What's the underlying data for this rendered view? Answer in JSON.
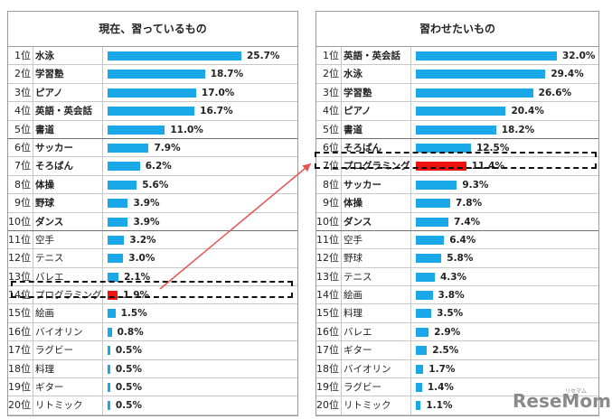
{
  "chart_data": [
    {
      "type": "bar",
      "title": "現在、習っているもの",
      "max": 25.7,
      "highlight": "プログラミング",
      "rows": [
        {
          "rank": "1位",
          "name": "水泳",
          "value": 25.7,
          "label": "25.7%",
          "bold": true
        },
        {
          "rank": "2位",
          "name": "学習塾",
          "value": 18.7,
          "label": "18.7%",
          "bold": true
        },
        {
          "rank": "3位",
          "name": "ピアノ",
          "value": 17.0,
          "label": "17.0%",
          "bold": true
        },
        {
          "rank": "4位",
          "name": "英語・英会話",
          "value": 16.7,
          "label": "16.7%",
          "bold": true
        },
        {
          "rank": "5位",
          "name": "書道",
          "value": 11.0,
          "label": "11.0%",
          "bold": true
        },
        {
          "rank": "6位",
          "name": "サッカー",
          "value": 7.9,
          "label": "7.9%",
          "bold": true
        },
        {
          "rank": "7位",
          "name": "そろばん",
          "value": 6.2,
          "label": "6.2%",
          "bold": true
        },
        {
          "rank": "8位",
          "name": "体操",
          "value": 5.6,
          "label": "5.6%",
          "bold": true
        },
        {
          "rank": "9位",
          "name": "野球",
          "value": 3.9,
          "label": "3.9%",
          "bold": true
        },
        {
          "rank": "10位",
          "name": "ダンス",
          "value": 3.9,
          "label": "3.9%",
          "bold": true
        },
        {
          "rank": "11位",
          "name": "空手",
          "value": 3.2,
          "label": "3.2%",
          "bold": false
        },
        {
          "rank": "12位",
          "name": "テニス",
          "value": 3.0,
          "label": "3.0%",
          "bold": false
        },
        {
          "rank": "13位",
          "name": "バレエ",
          "value": 2.1,
          "label": "2.1%",
          "bold": false
        },
        {
          "rank": "14位",
          "name": "プログラミング",
          "value": 1.9,
          "label": "1.9%",
          "bold": false
        },
        {
          "rank": "15位",
          "name": "絵画",
          "value": 1.5,
          "label": "1.5%",
          "bold": false
        },
        {
          "rank": "16位",
          "name": "バイオリン",
          "value": 0.8,
          "label": "0.8%",
          "bold": false
        },
        {
          "rank": "17位",
          "name": "ラグビー",
          "value": 0.5,
          "label": "0.5%",
          "bold": false
        },
        {
          "rank": "18位",
          "name": "料理",
          "value": 0.5,
          "label": "0.5%",
          "bold": false
        },
        {
          "rank": "19位",
          "name": "ギター",
          "value": 0.5,
          "label": "0.5%",
          "bold": false
        },
        {
          "rank": "20位",
          "name": "リトミック",
          "value": 0.5,
          "label": "0.5%",
          "bold": false
        }
      ]
    },
    {
      "type": "bar",
      "title": "習わせたいもの",
      "max": 32.0,
      "highlight": "プログラミング",
      "rows": [
        {
          "rank": "1位",
          "name": "英語・英会話",
          "value": 32.0,
          "label": "32.0%",
          "bold": true
        },
        {
          "rank": "2位",
          "name": "水泳",
          "value": 29.4,
          "label": "29.4%",
          "bold": true
        },
        {
          "rank": "3位",
          "name": "学習塾",
          "value": 26.6,
          "label": "26.6%",
          "bold": true
        },
        {
          "rank": "4位",
          "name": "ピアノ",
          "value": 20.4,
          "label": "20.4%",
          "bold": true
        },
        {
          "rank": "5位",
          "name": "書道",
          "value": 18.2,
          "label": "18.2%",
          "bold": true
        },
        {
          "rank": "6位",
          "name": "そろばん",
          "value": 12.5,
          "label": "12.5%",
          "bold": true
        },
        {
          "rank": "7位",
          "name": "プログラミング",
          "value": 11.4,
          "label": "11.4%",
          "bold": true
        },
        {
          "rank": "8位",
          "name": "サッカー",
          "value": 9.3,
          "label": "9.3%",
          "bold": true
        },
        {
          "rank": "9位",
          "name": "体操",
          "value": 7.8,
          "label": "7.8%",
          "bold": true
        },
        {
          "rank": "10位",
          "name": "ダンス",
          "value": 7.4,
          "label": "7.4%",
          "bold": true
        },
        {
          "rank": "11位",
          "name": "空手",
          "value": 6.4,
          "label": "6.4%",
          "bold": false
        },
        {
          "rank": "12位",
          "name": "野球",
          "value": 5.8,
          "label": "5.8%",
          "bold": false
        },
        {
          "rank": "13位",
          "name": "テニス",
          "value": 4.3,
          "label": "4.3%",
          "bold": false
        },
        {
          "rank": "14位",
          "name": "絵画",
          "value": 3.8,
          "label": "3.8%",
          "bold": false
        },
        {
          "rank": "15位",
          "name": "料理",
          "value": 3.5,
          "label": "3.5%",
          "bold": false
        },
        {
          "rank": "16位",
          "name": "バレエ",
          "value": 2.9,
          "label": "2.9%",
          "bold": false
        },
        {
          "rank": "17位",
          "name": "ギター",
          "value": 2.5,
          "label": "2.5%",
          "bold": false
        },
        {
          "rank": "18位",
          "name": "バイオリン",
          "value": 1.7,
          "label": "1.7%",
          "bold": false
        },
        {
          "rank": "19位",
          "name": "ラグビー",
          "value": 1.4,
          "label": "1.4%",
          "bold": false
        },
        {
          "rank": "20位",
          "name": "リトミック",
          "value": 1.1,
          "label": "1.1%",
          "bold": false
        }
      ]
    }
  ],
  "colors": {
    "bar": "#1aa8e8",
    "highlight": "#ee1111",
    "arrow": "#e85555"
  },
  "watermark": {
    "main": "ReseMom",
    "small": "リセマム"
  }
}
